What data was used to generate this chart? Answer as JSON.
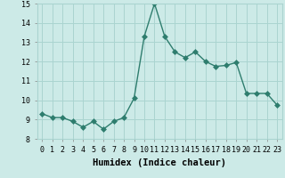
{
  "x": [
    0,
    1,
    2,
    3,
    4,
    5,
    6,
    7,
    8,
    9,
    10,
    11,
    12,
    13,
    14,
    15,
    16,
    17,
    18,
    19,
    20,
    21,
    22,
    23
  ],
  "y": [
    9.3,
    9.1,
    9.1,
    8.9,
    8.6,
    8.9,
    8.5,
    8.9,
    9.1,
    10.1,
    13.3,
    15.0,
    13.3,
    12.5,
    12.2,
    12.5,
    12.0,
    11.75,
    11.8,
    11.95,
    10.35,
    10.35,
    10.35,
    9.75
  ],
  "xlabel": "Humidex (Indice chaleur)",
  "xlim": [
    -0.5,
    23.5
  ],
  "ylim": [
    8,
    15
  ],
  "yticks": [
    8,
    9,
    10,
    11,
    12,
    13,
    14,
    15
  ],
  "xtick_labels": [
    "0",
    "1",
    "2",
    "3",
    "4",
    "5",
    "6",
    "7",
    "8",
    "9",
    "10",
    "11",
    "12",
    "13",
    "14",
    "15",
    "16",
    "17",
    "18",
    "19",
    "20",
    "21",
    "22",
    "23"
  ],
  "line_color": "#2e7d6e",
  "marker_size": 3.0,
  "bg_color": "#cceae7",
  "grid_color": "#aad4d0",
  "xlabel_fontsize": 7.5,
  "tick_fontsize": 6.0
}
